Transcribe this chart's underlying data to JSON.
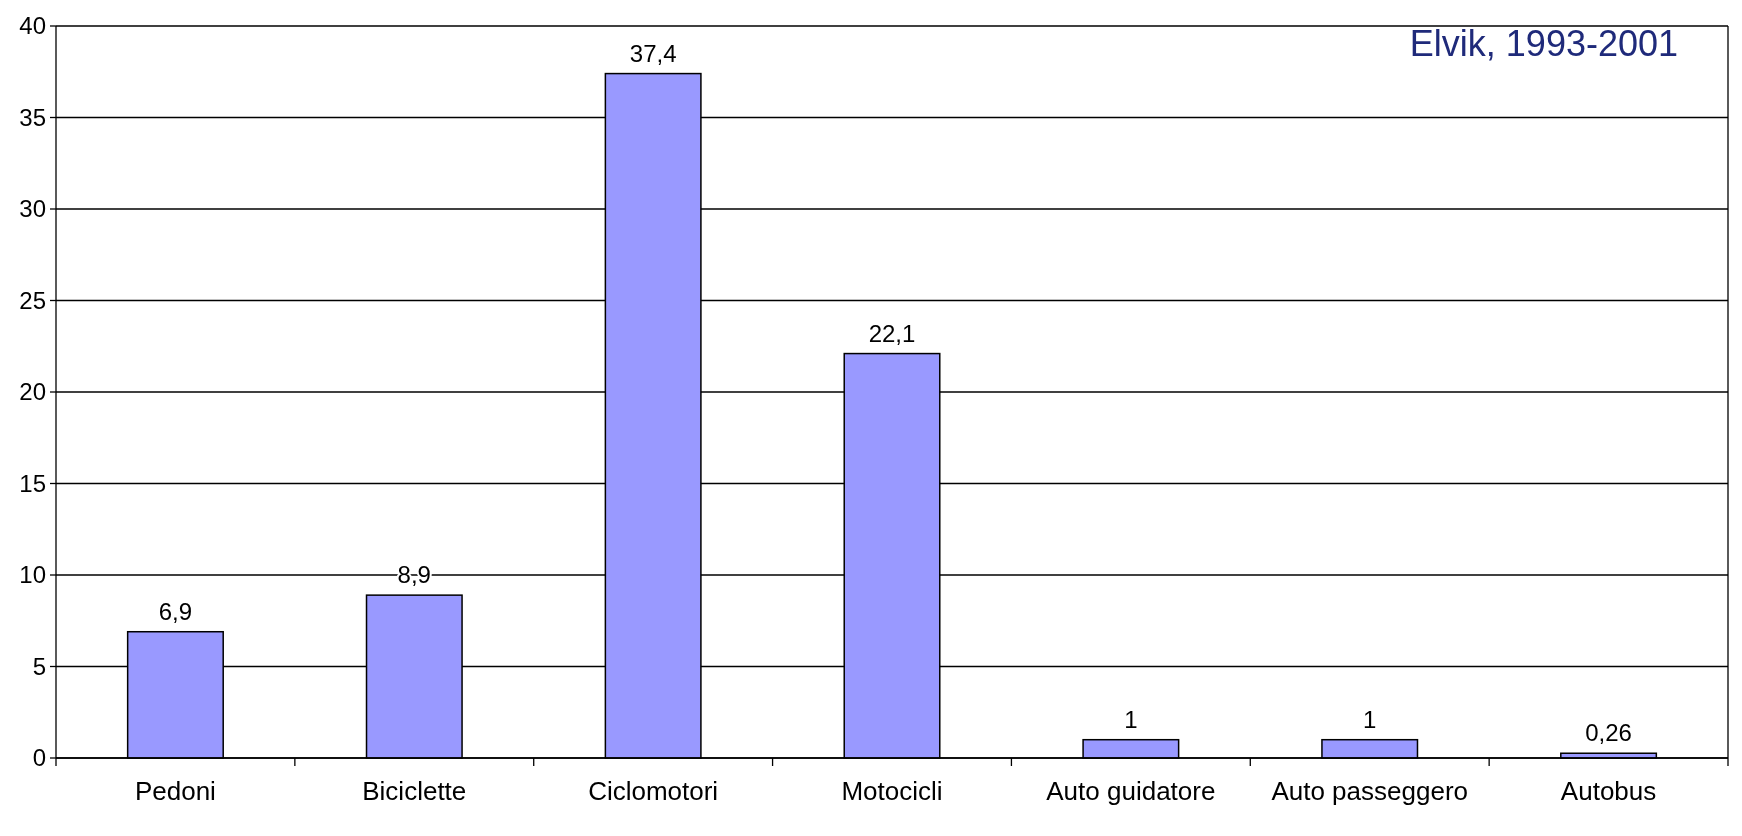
{
  "chart_data": {
    "type": "bar",
    "categories": [
      "Pedoni",
      "Biciclette",
      "Ciclomotori",
      "Motocicli",
      "Auto guidatore",
      "Auto passeggero",
      "Autobus"
    ],
    "values": [
      6.9,
      8.9,
      37.4,
      22.1,
      1,
      1,
      0.26
    ],
    "value_labels": [
      "6,9",
      "8,9",
      "37,4",
      "22,1",
      "1",
      "1",
      "0,26"
    ],
    "color": "#9999ff",
    "ylim": [
      0,
      40
    ],
    "yticks": [
      0,
      5,
      10,
      15,
      20,
      25,
      30,
      35,
      40
    ],
    "grid": "y",
    "annotations": [
      "Elvik, 1993-2001"
    ]
  }
}
